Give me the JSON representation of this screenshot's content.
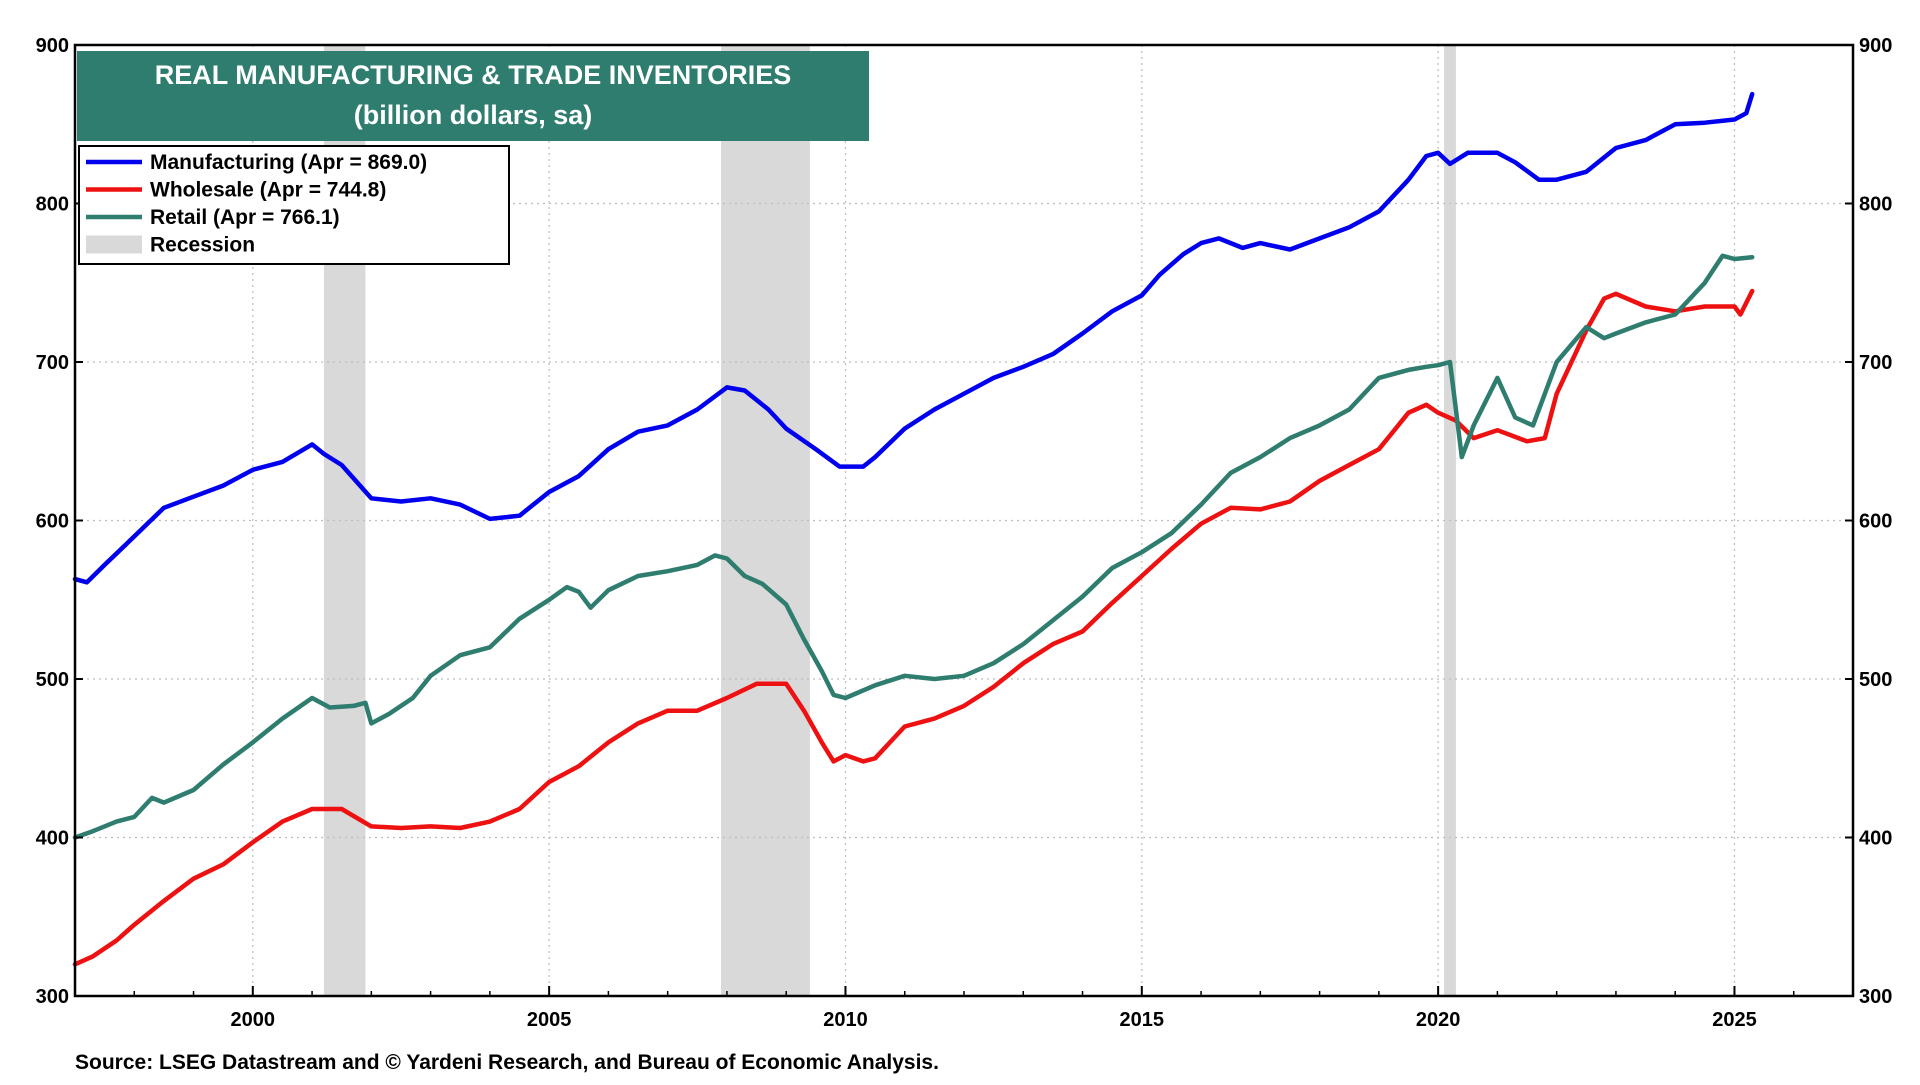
{
  "chart_data": {
    "type": "line",
    "title": "REAL MANUFACTURING & TRADE INVENTORIES",
    "subtitle": "(billion dollars, sa)",
    "source": "Source: LSEG Datastream and © Yardeni Research, and Bureau of Economic Analysis.",
    "xlim": [
      1997.0,
      2027.0
    ],
    "ylim": [
      300,
      900
    ],
    "yticks": [
      300,
      400,
      500,
      600,
      700,
      800,
      900
    ],
    "xticks": [
      2000,
      2005,
      2010,
      2015,
      2020,
      2025
    ],
    "grid": true,
    "legend_position": "top-left",
    "legend": [
      {
        "label": "Manufacturing (Apr = 869.0)",
        "color": "#0000ee",
        "kind": "line"
      },
      {
        "label": "Wholesale (Apr = 744.8)",
        "color": "#ee1111",
        "kind": "line"
      },
      {
        "label": "Retail (Apr = 766.1)",
        "color": "#2e7d6e",
        "kind": "line"
      },
      {
        "label": "Recession",
        "color": "#d9d9d9",
        "kind": "box"
      }
    ],
    "recessions": [
      [
        2001.2,
        2001.9
      ],
      [
        2007.9,
        2009.4
      ],
      [
        2020.1,
        2020.3
      ]
    ],
    "series": [
      {
        "name": "Manufacturing",
        "color": "#0000ee",
        "points": [
          [
            1997.0,
            563
          ],
          [
            1997.2,
            561
          ],
          [
            1997.5,
            572
          ],
          [
            1998.0,
            590
          ],
          [
            1998.5,
            608
          ],
          [
            1999.0,
            615
          ],
          [
            1999.5,
            622
          ],
          [
            2000.0,
            632
          ],
          [
            2000.5,
            637
          ],
          [
            2001.0,
            648
          ],
          [
            2001.2,
            642
          ],
          [
            2001.5,
            635
          ],
          [
            2002.0,
            614
          ],
          [
            2002.5,
            612
          ],
          [
            2003.0,
            614
          ],
          [
            2003.5,
            610
          ],
          [
            2004.0,
            601
          ],
          [
            2004.5,
            603
          ],
          [
            2005.0,
            618
          ],
          [
            2005.5,
            628
          ],
          [
            2006.0,
            645
          ],
          [
            2006.5,
            656
          ],
          [
            2007.0,
            660
          ],
          [
            2007.5,
            670
          ],
          [
            2008.0,
            684
          ],
          [
            2008.3,
            682
          ],
          [
            2008.7,
            670
          ],
          [
            2009.0,
            658
          ],
          [
            2009.5,
            645
          ],
          [
            2009.9,
            634
          ],
          [
            2010.3,
            634
          ],
          [
            2010.5,
            640
          ],
          [
            2011.0,
            658
          ],
          [
            2011.5,
            670
          ],
          [
            2012.0,
            680
          ],
          [
            2012.5,
            690
          ],
          [
            2013.0,
            697
          ],
          [
            2013.5,
            705
          ],
          [
            2014.0,
            718
          ],
          [
            2014.5,
            732
          ],
          [
            2015.0,
            742
          ],
          [
            2015.3,
            755
          ],
          [
            2015.7,
            768
          ],
          [
            2016.0,
            775
          ],
          [
            2016.3,
            778
          ],
          [
            2016.7,
            772
          ],
          [
            2017.0,
            775
          ],
          [
            2017.5,
            771
          ],
          [
            2018.0,
            778
          ],
          [
            2018.5,
            785
          ],
          [
            2019.0,
            795
          ],
          [
            2019.5,
            815
          ],
          [
            2019.8,
            830
          ],
          [
            2020.0,
            832
          ],
          [
            2020.2,
            825
          ],
          [
            2020.5,
            832
          ],
          [
            2021.0,
            832
          ],
          [
            2021.3,
            826
          ],
          [
            2021.7,
            815
          ],
          [
            2022.0,
            815
          ],
          [
            2022.5,
            820
          ],
          [
            2023.0,
            835
          ],
          [
            2023.5,
            840
          ],
          [
            2024.0,
            850
          ],
          [
            2024.5,
            851
          ],
          [
            2025.0,
            853
          ],
          [
            2025.2,
            857
          ],
          [
            2025.3,
            869
          ]
        ]
      },
      {
        "name": "Wholesale",
        "color": "#ee1111",
        "points": [
          [
            1997.0,
            320
          ],
          [
            1997.3,
            325
          ],
          [
            1997.7,
            335
          ],
          [
            1998.0,
            345
          ],
          [
            1998.5,
            360
          ],
          [
            1999.0,
            374
          ],
          [
            1999.5,
            383
          ],
          [
            2000.0,
            397
          ],
          [
            2000.5,
            410
          ],
          [
            2001.0,
            418
          ],
          [
            2001.5,
            418
          ],
          [
            2002.0,
            407
          ],
          [
            2002.5,
            406
          ],
          [
            2003.0,
            407
          ],
          [
            2003.5,
            406
          ],
          [
            2004.0,
            410
          ],
          [
            2004.5,
            418
          ],
          [
            2005.0,
            435
          ],
          [
            2005.5,
            445
          ],
          [
            2006.0,
            460
          ],
          [
            2006.5,
            472
          ],
          [
            2007.0,
            480
          ],
          [
            2007.5,
            480
          ],
          [
            2008.0,
            488
          ],
          [
            2008.5,
            497
          ],
          [
            2009.0,
            497
          ],
          [
            2009.3,
            480
          ],
          [
            2009.6,
            460
          ],
          [
            2009.8,
            448
          ],
          [
            2010.0,
            452
          ],
          [
            2010.3,
            448
          ],
          [
            2010.5,
            450
          ],
          [
            2011.0,
            470
          ],
          [
            2011.5,
            475
          ],
          [
            2012.0,
            483
          ],
          [
            2012.5,
            495
          ],
          [
            2013.0,
            510
          ],
          [
            2013.5,
            522
          ],
          [
            2014.0,
            530
          ],
          [
            2014.5,
            548
          ],
          [
            2015.0,
            565
          ],
          [
            2015.5,
            582
          ],
          [
            2016.0,
            598
          ],
          [
            2016.5,
            608
          ],
          [
            2017.0,
            607
          ],
          [
            2017.5,
            612
          ],
          [
            2018.0,
            625
          ],
          [
            2018.5,
            635
          ],
          [
            2019.0,
            645
          ],
          [
            2019.5,
            668
          ],
          [
            2019.8,
            673
          ],
          [
            2020.0,
            668
          ],
          [
            2020.3,
            663
          ],
          [
            2020.6,
            652
          ],
          [
            2021.0,
            657
          ],
          [
            2021.5,
            650
          ],
          [
            2021.8,
            652
          ],
          [
            2022.0,
            680
          ],
          [
            2022.5,
            720
          ],
          [
            2022.8,
            740
          ],
          [
            2023.0,
            743
          ],
          [
            2023.5,
            735
          ],
          [
            2024.0,
            732
          ],
          [
            2024.5,
            735
          ],
          [
            2025.0,
            735
          ],
          [
            2025.1,
            730
          ],
          [
            2025.3,
            744.8
          ]
        ]
      },
      {
        "name": "Retail",
        "color": "#2e7d6e",
        "points": [
          [
            1997.0,
            400
          ],
          [
            1997.3,
            404
          ],
          [
            1997.7,
            410
          ],
          [
            1998.0,
            413
          ],
          [
            1998.3,
            425
          ],
          [
            1998.5,
            422
          ],
          [
            1999.0,
            430
          ],
          [
            1999.5,
            446
          ],
          [
            2000.0,
            460
          ],
          [
            2000.5,
            475
          ],
          [
            2001.0,
            488
          ],
          [
            2001.3,
            482
          ],
          [
            2001.7,
            483
          ],
          [
            2001.9,
            485
          ],
          [
            2002.0,
            472
          ],
          [
            2002.3,
            478
          ],
          [
            2002.7,
            488
          ],
          [
            2003.0,
            502
          ],
          [
            2003.5,
            515
          ],
          [
            2004.0,
            520
          ],
          [
            2004.5,
            538
          ],
          [
            2005.0,
            550
          ],
          [
            2005.3,
            558
          ],
          [
            2005.5,
            555
          ],
          [
            2005.7,
            545
          ],
          [
            2006.0,
            556
          ],
          [
            2006.5,
            565
          ],
          [
            2007.0,
            568
          ],
          [
            2007.5,
            572
          ],
          [
            2007.8,
            578
          ],
          [
            2008.0,
            576
          ],
          [
            2008.3,
            565
          ],
          [
            2008.6,
            560
          ],
          [
            2009.0,
            547
          ],
          [
            2009.3,
            525
          ],
          [
            2009.6,
            505
          ],
          [
            2009.8,
            490
          ],
          [
            2010.0,
            488
          ],
          [
            2010.5,
            496
          ],
          [
            2011.0,
            502
          ],
          [
            2011.5,
            500
          ],
          [
            2012.0,
            502
          ],
          [
            2012.5,
            510
          ],
          [
            2013.0,
            522
          ],
          [
            2013.5,
            537
          ],
          [
            2014.0,
            552
          ],
          [
            2014.5,
            570
          ],
          [
            2015.0,
            580
          ],
          [
            2015.5,
            592
          ],
          [
            2016.0,
            610
          ],
          [
            2016.5,
            630
          ],
          [
            2017.0,
            640
          ],
          [
            2017.5,
            652
          ],
          [
            2018.0,
            660
          ],
          [
            2018.5,
            670
          ],
          [
            2019.0,
            690
          ],
          [
            2019.5,
            695
          ],
          [
            2019.8,
            697
          ],
          [
            2020.0,
            698
          ],
          [
            2020.2,
            700
          ],
          [
            2020.4,
            640
          ],
          [
            2020.6,
            660
          ],
          [
            2021.0,
            690
          ],
          [
            2021.3,
            665
          ],
          [
            2021.6,
            660
          ],
          [
            2022.0,
            700
          ],
          [
            2022.5,
            722
          ],
          [
            2022.8,
            715
          ],
          [
            2023.0,
            718
          ],
          [
            2023.5,
            725
          ],
          [
            2024.0,
            730
          ],
          [
            2024.5,
            750
          ],
          [
            2024.8,
            767
          ],
          [
            2025.0,
            765
          ],
          [
            2025.3,
            766.1
          ]
        ]
      }
    ]
  }
}
